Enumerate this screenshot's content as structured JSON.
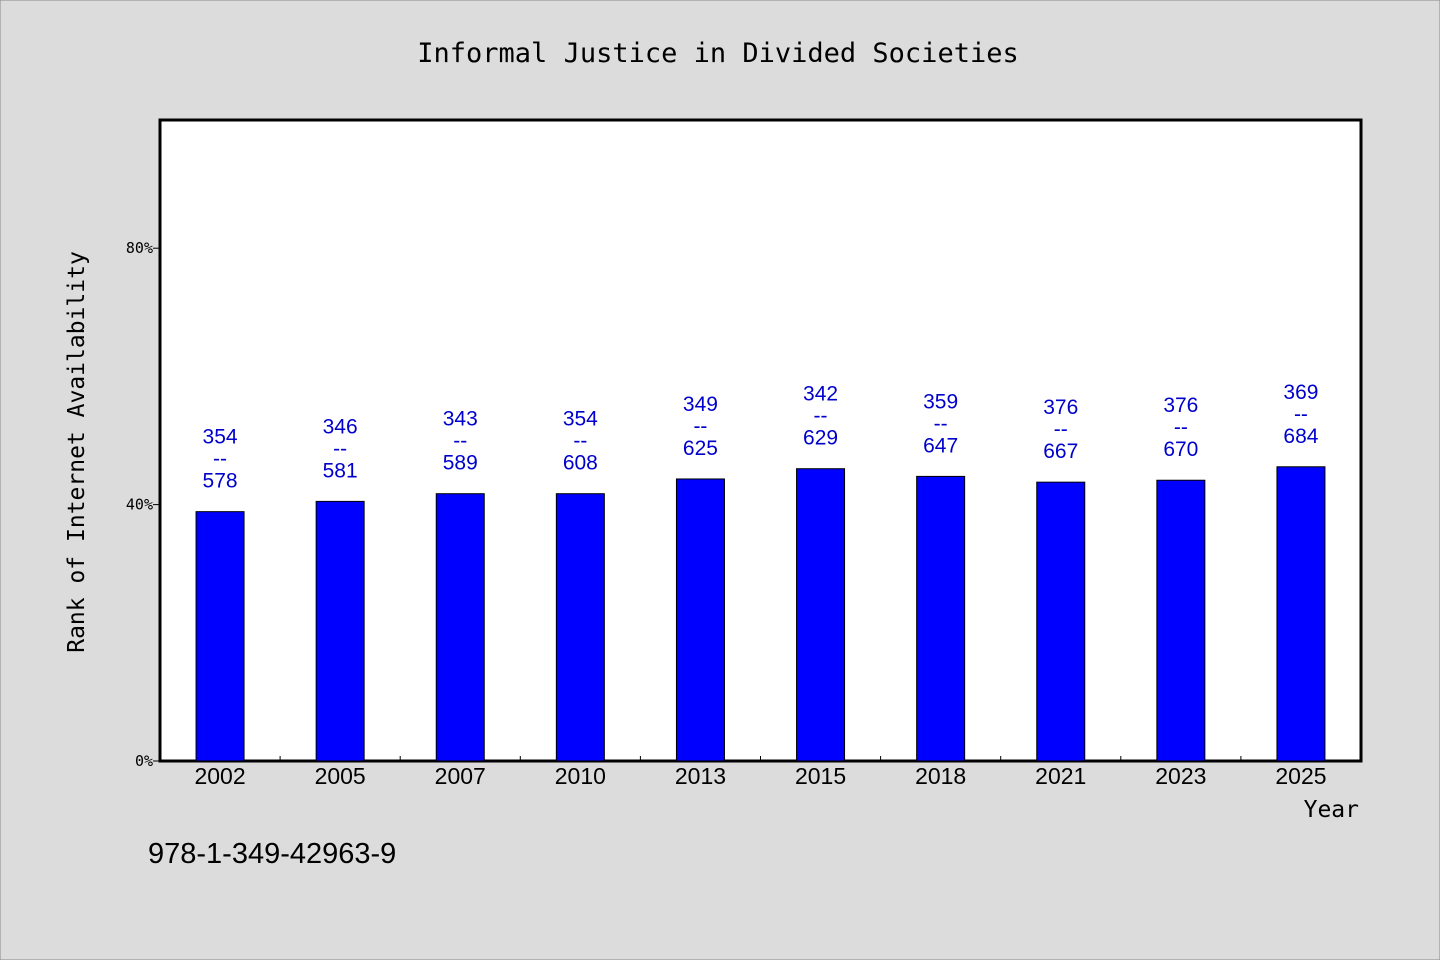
{
  "chart_data": {
    "type": "bar",
    "title": "Informal Justice in Divided Societies",
    "xlabel": "Year",
    "ylabel": "Rank of Internet Availability",
    "categories": [
      "2002",
      "2005",
      "2007",
      "2010",
      "2013",
      "2015",
      "2018",
      "2021",
      "2023",
      "2025"
    ],
    "values": [
      38.9,
      40.5,
      41.7,
      41.7,
      44.0,
      45.6,
      44.4,
      43.5,
      43.8,
      45.9
    ],
    "labels_top": [
      "354",
      "346",
      "343",
      "354",
      "349",
      "342",
      "359",
      "376",
      "376",
      "369"
    ],
    "labels_sep": "--",
    "labels_bottom": [
      "578",
      "581",
      "589",
      "608",
      "625",
      "629",
      "647",
      "667",
      "670",
      "684"
    ],
    "ylim": [
      0,
      100
    ],
    "yticks": [
      0,
      40,
      80
    ],
    "ytick_labels": [
      "0%",
      "40%",
      "80%"
    ],
    "bar_color": "#0000ff",
    "label_color": "#0000cc",
    "grid": false,
    "legend": "none"
  },
  "footer": {
    "isbn": "978-1-349-42963-9"
  }
}
